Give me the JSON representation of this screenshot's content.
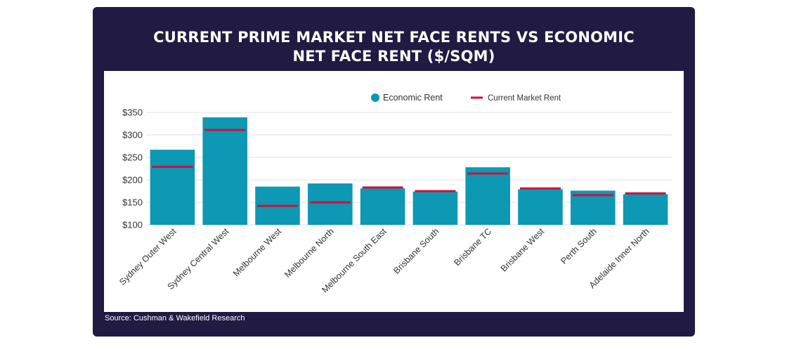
{
  "title_lines": [
    "CURRENT PRIME MARKET NET FACE RENTS VS ECONOMIC",
    "NET FACE RENT ($/SQM)"
  ],
  "source": "Source: Cushman & Wakefield Research",
  "colors": {
    "background": "#211a42",
    "bar": "#0d98b3",
    "marker": "#d0103a",
    "grid": "#e2e2e2",
    "text": "#333333"
  },
  "chart_data": {
    "type": "bar",
    "categories": [
      "Sydney Outer West",
      "Sydney Central West",
      "Melbourne West",
      "Melbourne North",
      "Melbourne South East",
      "Brisbane South",
      "Brisbane TC",
      "Brisbane West",
      "Perth South",
      "Adelaide Inner North"
    ],
    "series": [
      {
        "name": "Economic Rent",
        "type": "bar",
        "values": [
          267,
          339,
          185,
          192,
          181,
          174,
          228,
          179,
          176,
          168
        ]
      },
      {
        "name": "Current Market Rent",
        "type": "marker",
        "values": [
          229,
          311,
          142,
          150,
          183,
          175,
          214,
          181,
          166,
          170
        ]
      }
    ],
    "yticks": [
      "$350",
      "$300",
      "$250",
      "$200",
      "$150",
      "$100"
    ],
    "ylim": [
      100,
      350
    ],
    "grid": true,
    "legend_position": "top"
  }
}
